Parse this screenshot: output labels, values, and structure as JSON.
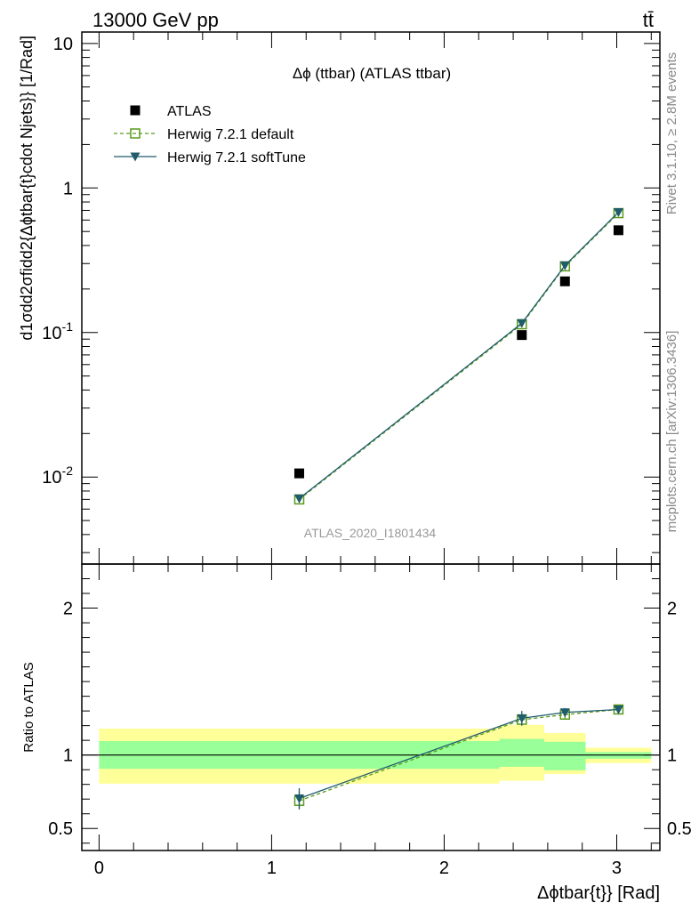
{
  "header": {
    "energy_label": "13000 GeV pp",
    "process_label": "tt̄"
  },
  "side_labels": {
    "rivet": "Rivet 3.1.10, ≥ 2.8M events",
    "mcplots": "mcplots.cern.ch [arXiv:1306.3436]"
  },
  "chart_data": [
    {
      "type": "scatter",
      "panel": "main",
      "title": "Δϕ (ttbar) (ATLAS ttbar)",
      "watermark": "ATLAS_2020_I1801434",
      "ylabel": "d1σdd2σfidd2{Δϕtbar{t}cdot Njets}} [1/Rad]",
      "yscale": "log",
      "xlim": [
        -0.1,
        3.25
      ],
      "ylim": [
        0.0025,
        12
      ],
      "y_tick_labels": [
        "10^-2",
        "10^-1",
        "1",
        "10"
      ],
      "legend_position": "top-left",
      "series": [
        {
          "name": "ATLAS",
          "marker": "filled-square",
          "color": "#000000",
          "x": [
            1.16,
            2.45,
            2.7,
            3.01
          ],
          "y": [
            0.0106,
            0.096,
            0.226,
            0.51
          ]
        },
        {
          "name": "Herwig 7.2.1 default",
          "marker": "open-square",
          "line": "dashed",
          "color": "#5a9a1a",
          "x": [
            1.16,
            2.45,
            2.7,
            3.01
          ],
          "y": [
            0.007,
            0.114,
            0.287,
            0.67
          ]
        },
        {
          "name": "Herwig 7.2.1 softTune",
          "marker": "filled-triangle-down",
          "line": "solid",
          "color": "#1f5c6c",
          "x": [
            1.16,
            2.45,
            2.7,
            3.01
          ],
          "y": [
            0.0071,
            0.116,
            0.291,
            0.68
          ]
        }
      ]
    },
    {
      "type": "scatter",
      "panel": "ratio",
      "ylabel": "Ratio to ATLAS",
      "xlabel": "Δϕtbar{t}} [Rad]",
      "xlim": [
        -0.1,
        3.25
      ],
      "ylim": [
        0.35,
        2.3
      ],
      "x_ticks": [
        0,
        1,
        2,
        3
      ],
      "y_ticks": [
        0.5,
        1,
        2
      ],
      "bands": {
        "edges": [
          0,
          2.32,
          2.58,
          2.82,
          3.2
        ],
        "inner": [
          [
            0.906,
            1.095
          ],
          [
            0.92,
            1.11
          ],
          [
            0.896,
            1.09
          ],
          [
            0.975,
            1.02
          ]
        ],
        "outer": [
          [
            0.805,
            1.18
          ],
          [
            0.825,
            1.205
          ],
          [
            0.87,
            1.15
          ],
          [
            0.945,
            1.05
          ]
        ],
        "inner_color": "#99ff99",
        "outer_color": "#ffff99"
      },
      "series": [
        {
          "name": "Herwig 7.2.1 default",
          "x": [
            1.16,
            2.45,
            2.7,
            3.01
          ],
          "y": [
            0.688,
            1.24,
            1.275,
            1.31
          ],
          "yerr": [
            0.06,
            0.04,
            0.03,
            0.01
          ]
        },
        {
          "name": "Herwig 7.2.1 softTune",
          "x": [
            1.16,
            2.45,
            2.7,
            3.01
          ],
          "y": [
            0.704,
            1.25,
            1.29,
            1.31
          ],
          "yerr": [
            0.07,
            0.05,
            0.03,
            0.01
          ]
        }
      ]
    }
  ]
}
